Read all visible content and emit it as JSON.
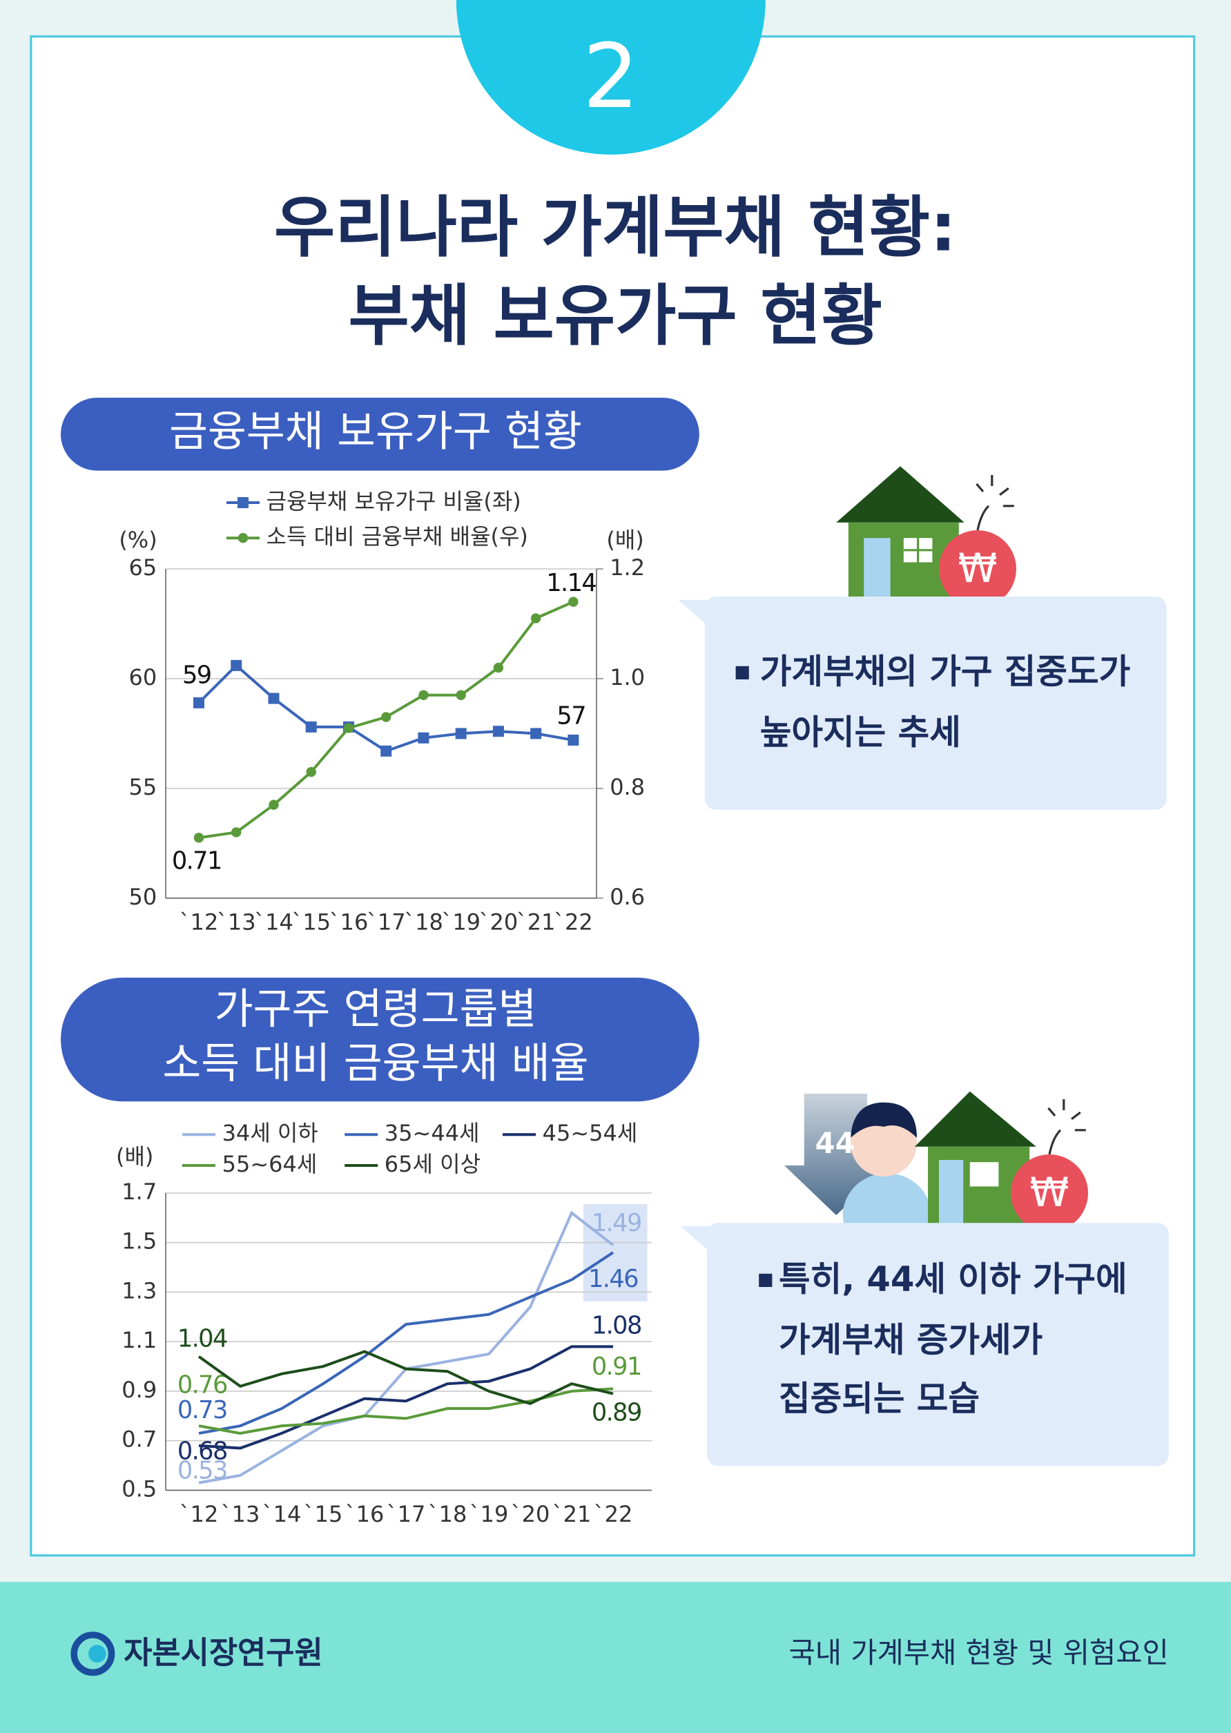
{
  "badge": "2",
  "title_lines": [
    "우리나라 가계부채 현황:",
    "부채 보유가구 현황"
  ],
  "sections": [
    {
      "heading_lines": [
        "금융부채 보유가구 현황"
      ],
      "callout_lines": [
        "가계부채의 가구 집중도가",
        "높아지는 추세"
      ],
      "icon_symbol": "₩"
    },
    {
      "heading_lines": [
        "가구주 연령그룹별",
        "소득 대비 금융부채 배율"
      ],
      "callout_lines": [
        "특히, 44세 이하 가구에",
        "가계부채 증가세가",
        "집중되는 모습"
      ],
      "icon_symbol": "₩",
      "icon_label": "44"
    }
  ],
  "chart_data": [
    {
      "type": "line",
      "y_label": "(%)",
      "y2_label": "(배)",
      "categories": [
        "`12",
        "`13",
        "`14",
        "`15",
        "`16",
        "`17",
        "`18",
        "`19",
        "`20",
        "`21",
        "`22"
      ],
      "ylim": [
        50,
        65
      ],
      "yticks": [
        50,
        55,
        60,
        65
      ],
      "y2lim": [
        0.6,
        1.2
      ],
      "y2ticks": [
        0.6,
        0.8,
        {
          "value": 1,
          "label": "1.0"
        },
        1.2
      ],
      "grid": true,
      "series": [
        {
          "name": "금융부채 보유가구 비율(좌)",
          "color": "#3a66b8",
          "marker": "square",
          "values": [
            58.9,
            60.6,
            59.1,
            57.8,
            57.8,
            56.7,
            57.3,
            57.5,
            57.6,
            57.5,
            57.2
          ],
          "value_labels": [
            "59",
            null,
            null,
            null,
            null,
            null,
            null,
            null,
            null,
            null,
            "57"
          ]
        },
        {
          "name": "소득 대비 금융부채 배율(우)",
          "color": "#5a9a3a",
          "marker": "circle",
          "axis": "y2",
          "values": [
            0.71,
            0.72,
            0.77,
            0.83,
            0.91,
            0.93,
            0.97,
            0.97,
            1.02,
            1.11,
            1.14
          ],
          "value_labels": [
            "0.71",
            null,
            null,
            null,
            null,
            null,
            null,
            null,
            null,
            null,
            "1.14"
          ]
        }
      ]
    },
    {
      "type": "line",
      "y_label": "(배)",
      "categories": [
        "`12",
        "`13",
        "`14",
        "`15",
        "`16",
        "`17",
        "`18",
        "`19",
        "`20",
        "`21",
        "`22"
      ],
      "ylim": [
        0.5,
        1.7
      ],
      "yticks": [
        0.5,
        0.7,
        0.9,
        1.1,
        1.3,
        1.5,
        1.7
      ],
      "grid": true,
      "series": [
        {
          "name": "34세 이하",
          "color": "#9ab3e0",
          "values": [
            0.53,
            0.56,
            0.66,
            0.76,
            0.8,
            0.99,
            1.02,
            1.05,
            1.24,
            1.62,
            1.49
          ],
          "value_labels": [
            "0.53",
            null,
            null,
            null,
            null,
            null,
            null,
            null,
            null,
            null,
            "1.49"
          ]
        },
        {
          "name": "35~44세",
          "color": "#3a66b8",
          "values": [
            0.73,
            0.76,
            0.83,
            0.93,
            1.04,
            1.17,
            1.19,
            1.21,
            1.28,
            1.35,
            1.46
          ],
          "value_labels": [
            "0.73",
            null,
            null,
            null,
            null,
            null,
            null,
            null,
            null,
            null,
            "1.46"
          ]
        },
        {
          "name": "45~54세",
          "color": "#1a2f6b",
          "values": [
            0.68,
            0.67,
            0.73,
            0.8,
            0.87,
            0.86,
            0.93,
            0.94,
            0.99,
            1.08,
            1.08
          ],
          "value_labels": [
            "0.68",
            null,
            null,
            null,
            null,
            null,
            null,
            null,
            null,
            null,
            "1.08"
          ]
        },
        {
          "name": "55~64세",
          "color": "#5a9a3a",
          "values": [
            0.76,
            0.73,
            0.76,
            0.77,
            0.8,
            0.79,
            0.83,
            0.83,
            0.86,
            0.9,
            0.91
          ],
          "value_labels": [
            "0.76",
            null,
            null,
            null,
            null,
            null,
            null,
            null,
            null,
            null,
            "0.91"
          ]
        },
        {
          "name": "65세 이상",
          "color": "#1e4d1a",
          "values": [
            1.04,
            0.92,
            0.97,
            1,
            1.06,
            0.99,
            0.98,
            0.9,
            0.85,
            0.93,
            0.89
          ],
          "value_labels": [
            "1.04",
            null,
            null,
            null,
            null,
            null,
            null,
            null,
            null,
            null,
            "0.89"
          ]
        }
      ]
    }
  ],
  "footer": {
    "logo": "자본시장연구원",
    "text": "국내 가계부채 현황 및 위험요인"
  }
}
